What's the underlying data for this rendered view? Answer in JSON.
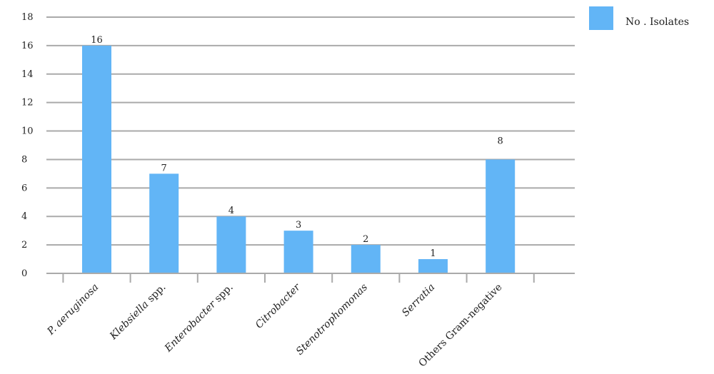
{
  "chart_data": {
    "type": "bar",
    "categories": [
      "P. aeruginosa",
      "Klebsiella spp.",
      "Enterobacter spp.",
      "Citrobacter",
      "Stenotrophomonas",
      "Serratia",
      "Others Gram-negative"
    ],
    "italic_parts": [
      "P. aeruginosa",
      "Klebsiella",
      "Enterobacter",
      "Citrobacter",
      "Stenotrophomonas",
      "Serratia",
      ""
    ],
    "series": [
      {
        "name": "No . Isolates",
        "values": [
          16,
          7,
          4,
          3,
          2,
          1,
          8
        ]
      }
    ],
    "data_labels": [
      "16",
      "7",
      "4",
      "3",
      "2",
      "1",
      "8"
    ],
    "yticks": [
      0,
      2,
      4,
      6,
      8,
      10,
      12,
      14,
      16,
      18
    ],
    "ylim": [
      0,
      18
    ],
    "grid": true,
    "legend": "top-right",
    "bar_color": "#62b5f6",
    "grid_color": "#aaaaaa",
    "title": "",
    "xlabel": "",
    "ylabel": ""
  }
}
